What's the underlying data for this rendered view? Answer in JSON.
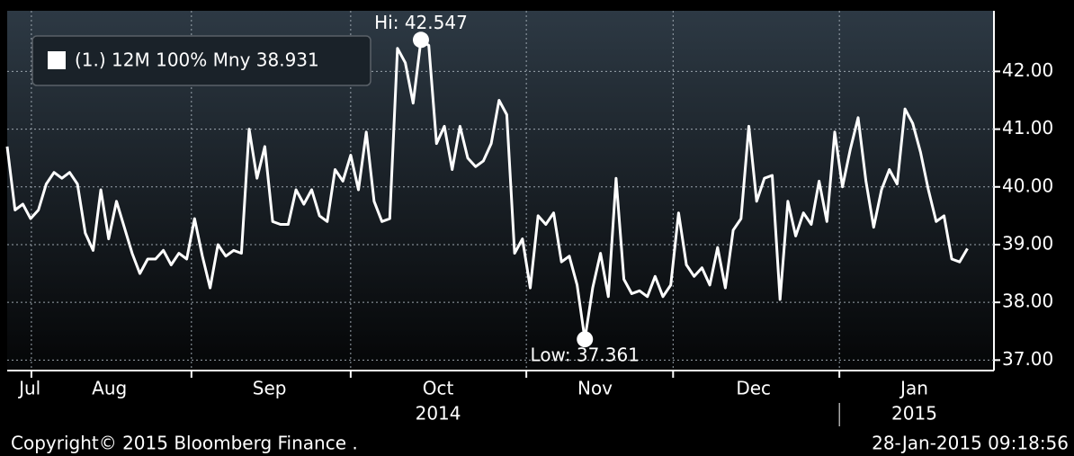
{
  "chart_data": {
    "type": "line",
    "series": [
      {
        "name": "(1.) 12M 100% Mny 38.931",
        "color": "#ffffff",
        "values": [
          40.7,
          39.6,
          39.7,
          39.45,
          39.6,
          40.05,
          40.25,
          40.15,
          40.25,
          40.05,
          39.2,
          38.9,
          39.95,
          39.1,
          39.75,
          39.3,
          38.85,
          38.5,
          38.75,
          38.75,
          38.9,
          38.65,
          38.85,
          38.75,
          39.45,
          38.8,
          38.25,
          39.0,
          38.8,
          38.9,
          38.85,
          41.0,
          40.15,
          40.7,
          39.4,
          39.35,
          39.35,
          39.95,
          39.7,
          39.95,
          39.5,
          39.4,
          40.3,
          40.1,
          40.55,
          39.95,
          40.95,
          39.75,
          39.4,
          39.45,
          42.4,
          42.15,
          41.45,
          42.547,
          42.45,
          40.75,
          41.05,
          40.3,
          41.05,
          40.5,
          40.35,
          40.45,
          40.75,
          41.5,
          41.25,
          38.85,
          39.1,
          38.25,
          39.5,
          39.35,
          39.55,
          38.7,
          38.8,
          38.3,
          37.361,
          38.25,
          38.85,
          38.1,
          40.15,
          38.4,
          38.15,
          38.2,
          38.1,
          38.45,
          38.1,
          38.3,
          39.55,
          38.65,
          38.45,
          38.6,
          38.3,
          38.95,
          38.25,
          39.25,
          39.45,
          41.05,
          39.75,
          40.15,
          40.2,
          38.05,
          39.75,
          39.15,
          39.55,
          39.35,
          40.1,
          39.4,
          40.95,
          40.0,
          40.65,
          41.2,
          40.1,
          39.3,
          39.95,
          40.3,
          40.05,
          41.35,
          41.1,
          40.6,
          39.95,
          39.4,
          39.5,
          38.75,
          38.7,
          38.931
        ]
      }
    ],
    "annotations": [
      {
        "text": "Hi: 42.547",
        "value": 42.547
      },
      {
        "text": "Low: 37.361",
        "value": 37.361
      }
    ],
    "xlim": [
      0,
      126.4
    ],
    "xticks": [
      {
        "value": 2.9,
        "label": "Jul"
      },
      {
        "value": 13.1,
        "label": "Aug"
      },
      {
        "value": 33.6,
        "label": "Sep"
      },
      {
        "value": 55.2,
        "label": "Oct"
      },
      {
        "value": 75.3,
        "label": "Nov"
      },
      {
        "value": 95.6,
        "label": "Dec"
      },
      {
        "value": 116.2,
        "label": "Jan"
      }
    ],
    "month_boundaries": [
      3.1,
      23.6,
      44,
      66.5,
      85.3,
      106.6
    ],
    "year_labels": [
      {
        "value": 55.2,
        "label": "2014"
      },
      {
        "value": 116.2,
        "label": "2015"
      }
    ],
    "year_boundary": 106.6,
    "ylim": [
      36.85,
      43.05
    ],
    "yticks": [
      {
        "value": 37,
        "label": "37.00"
      },
      {
        "value": 38,
        "label": "38.00"
      },
      {
        "value": 39,
        "label": "39.00"
      },
      {
        "value": 40,
        "label": "40.00"
      },
      {
        "value": 41,
        "label": "41.00"
      },
      {
        "value": 42,
        "label": "42.00"
      }
    ],
    "grid": true,
    "legend": "upper left",
    "footer_left": "Copyright© 2015 Bloomberg Finance    .",
    "footer_right": "28-Jan-2015 09:18:56"
  }
}
